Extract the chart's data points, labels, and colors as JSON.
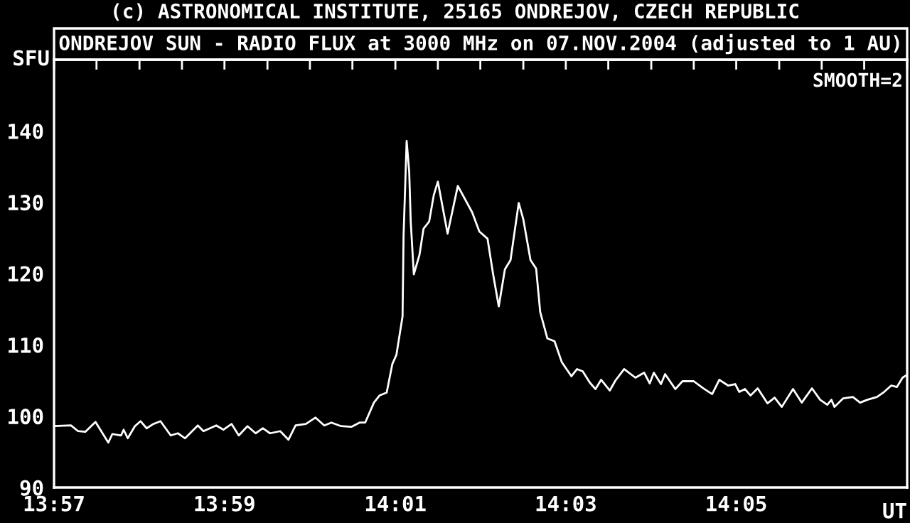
{
  "chart_data": {
    "type": "line",
    "title": "ONDREJOV SUN - RADIO FLUX at 3000 MHz on 07.NOV.2004 (adjusted to 1 AU)",
    "xlabel": "UT",
    "ylabel": "SFU",
    "annotations": [
      "(c) ASTRONOMICAL INSTITUTE, 25165 ONDREJOV, CZECH REPUBLIC",
      "SMOOTH=2"
    ],
    "series": [
      {
        "color": "#ffffff",
        "x": [
          13.95,
          13.9533,
          13.9547,
          13.9561,
          13.9581,
          13.9606,
          13.9614,
          13.9631,
          13.9636,
          13.9644,
          13.9658,
          13.9669,
          13.9681,
          13.9694,
          13.9708,
          13.9728,
          13.9742,
          13.9756,
          13.9781,
          13.9792,
          13.9817,
          13.9831,
          13.9847,
          13.9861,
          13.9878,
          13.9894,
          13.9908,
          13.9922,
          13.9942,
          13.9958,
          13.9972,
          13.9992,
          14.0011,
          14.0028,
          14.0042,
          14.0061,
          14.0081,
          14.0097,
          14.0108,
          14.0125,
          14.0136,
          14.015,
          14.0161,
          14.0169,
          14.0181,
          14.0183,
          14.0189,
          14.0194,
          14.0197,
          14.0203,
          14.0214,
          14.0222,
          14.0233,
          14.0242,
          14.025,
          14.0269,
          14.0289,
          14.0317,
          14.0331,
          14.0347,
          14.0358,
          14.0369,
          14.0381,
          14.0392,
          14.0408,
          14.0417,
          14.0431,
          14.0442,
          14.045,
          14.0464,
          14.0478,
          14.0492,
          14.0511,
          14.0522,
          14.0533,
          14.0547,
          14.0558,
          14.0569,
          14.0586,
          14.0597,
          14.0614,
          14.0636,
          14.0653,
          14.0664,
          14.0672,
          14.0686,
          14.0694,
          14.0714,
          14.0728,
          14.075,
          14.0769,
          14.0786,
          14.08,
          14.0817,
          14.0831,
          14.0839,
          14.085,
          14.0861,
          14.0875,
          14.0894,
          14.0908,
          14.0922,
          14.0944,
          14.0961,
          14.0981,
          14.0997,
          14.1011,
          14.1019,
          14.1025,
          14.1042,
          14.1061,
          14.1075,
          14.1089,
          14.1108,
          14.1122,
          14.1136,
          14.1147,
          14.1158,
          14.1167
        ],
        "values": [
          98.6,
          98.7,
          97.9,
          97.8,
          99.2,
          96.3,
          97.5,
          97.3,
          98.1,
          96.9,
          98.6,
          99.3,
          98.3,
          98.9,
          99.3,
          97.3,
          97.6,
          96.9,
          98.7,
          97.9,
          98.7,
          98.1,
          98.9,
          97.3,
          98.6,
          97.6,
          98.3,
          97.6,
          97.9,
          96.7,
          98.7,
          98.9,
          99.8,
          98.7,
          99.1,
          98.6,
          98.5,
          99.1,
          99.1,
          101.9,
          102.9,
          103.3,
          107.3,
          108.6,
          114,
          125.3,
          138.6,
          134.3,
          127.3,
          119.9,
          122.6,
          126.3,
          127.3,
          131,
          132.9,
          125.6,
          132.3,
          128.6,
          125.9,
          124.9,
          119.9,
          115.4,
          120.6,
          121.9,
          129.9,
          127.6,
          121.9,
          120.7,
          114.6,
          110.9,
          110.5,
          107.6,
          105.6,
          106.6,
          106.3,
          104.7,
          103.8,
          105.1,
          103.6,
          105,
          106.6,
          105.4,
          106.1,
          104.6,
          106.1,
          104.5,
          105.9,
          103.8,
          104.9,
          104.9,
          103.9,
          103.1,
          105.1,
          104.3,
          104.5,
          103.4,
          103.8,
          102.9,
          103.9,
          101.8,
          102.6,
          101.3,
          103.8,
          101.9,
          103.9,
          102.3,
          101.6,
          102.3,
          101.3,
          102.5,
          102.7,
          101.9,
          102.3,
          102.7,
          103.4,
          104.3,
          104.1,
          105.4,
          105.8
        ]
      }
    ],
    "xlim": [
      13.95,
      14.1167
    ],
    "xticks": [
      {
        "value": 13.95,
        "label": "13:57"
      },
      {
        "value": 13.9583,
        "label": null
      },
      {
        "value": 13.9667,
        "label": null
      },
      {
        "value": 13.975,
        "label": null
      },
      {
        "value": 13.9833,
        "label": "13:59"
      },
      {
        "value": 13.9917,
        "label": null
      },
      {
        "value": 14.0,
        "label": null
      },
      {
        "value": 14.0083,
        "label": null
      },
      {
        "value": 14.0167,
        "label": "14:01"
      },
      {
        "value": 14.025,
        "label": null
      },
      {
        "value": 14.0333,
        "label": null
      },
      {
        "value": 14.0417,
        "label": null
      },
      {
        "value": 14.05,
        "label": "14:03"
      },
      {
        "value": 14.0583,
        "label": null
      },
      {
        "value": 14.0667,
        "label": null
      },
      {
        "value": 14.075,
        "label": null
      },
      {
        "value": 14.0833,
        "label": "14:05"
      },
      {
        "value": 14.0917,
        "label": null
      },
      {
        "value": 14.1,
        "label": null
      },
      {
        "value": 14.1083,
        "label": null
      },
      {
        "value": 14.1167,
        "label": null
      }
    ],
    "ylim": [
      90,
      150
    ],
    "yticks": [
      90,
      100,
      110,
      120,
      130,
      140
    ]
  }
}
